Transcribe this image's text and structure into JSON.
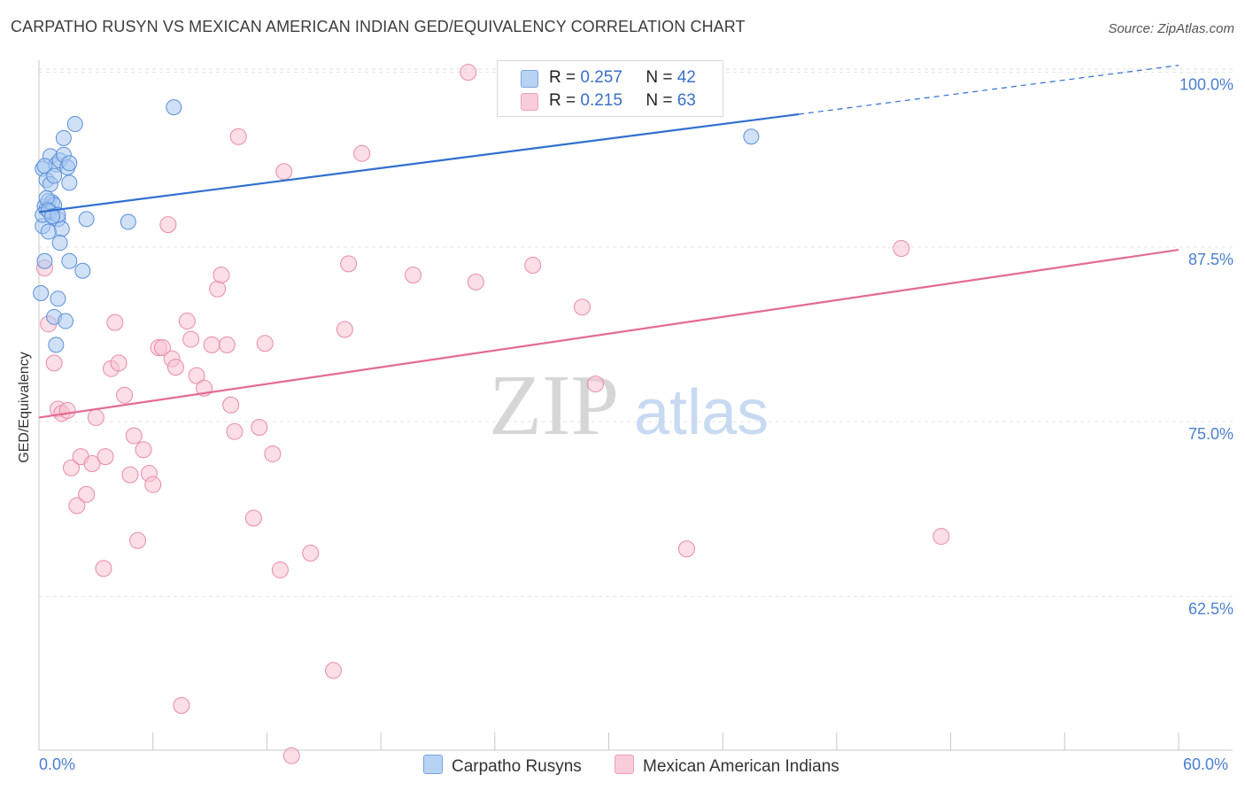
{
  "title": "CARPATHO RUSYN VS MEXICAN AMERICAN INDIAN GED/EQUIVALENCY CORRELATION CHART",
  "source": "Source: ZipAtlas.com",
  "watermark": {
    "zip": "ZIP",
    "atlas": "atlas"
  },
  "colors": {
    "blue_fill": "#a9c8f0",
    "blue_stroke": "#5a8fd8",
    "blue_line": "#2f6fd0",
    "pink_fill": "#f7c3d2",
    "pink_stroke": "#e88aa8",
    "pink_line": "#e46a93",
    "tick_text": "#4a7fd0",
    "grid": "#e3e3e3"
  },
  "legend": {
    "rows": [
      {
        "r_label": "R = ",
        "r_value": "0.257",
        "n_label": "N = ",
        "n_value": "42"
      },
      {
        "r_label": "R = ",
        "r_value": "0.215",
        "n_label": "N = ",
        "n_value": "63"
      }
    ]
  },
  "chart_data": {
    "type": "scatter",
    "title": "CARPATHO RUSYN VS MEXICAN AMERICAN INDIAN GED/EQUIVALENCY CORRELATION CHART",
    "xlabel": "",
    "ylabel": "GED/Equivalency",
    "xlim": [
      0,
      60
    ],
    "ylim": [
      51.5,
      101.5
    ],
    "x_tick_labels": [
      "0.0%",
      "60.0%"
    ],
    "y_ticks": [
      100,
      87.5,
      75,
      62.5
    ],
    "y_tick_labels": [
      "100.0%",
      "87.5%",
      "75.0%",
      "62.5%"
    ],
    "grid": true,
    "legend_position": "top-center",
    "series": [
      {
        "name": "Carpatho Rusyns",
        "color": "#a9c8f0",
        "trend": {
          "x0": 0,
          "y0": 90.0,
          "x1": 40,
          "y1": 97.0,
          "dash_to_x": 60,
          "dash_to_y": 100.5
        },
        "points": [
          [
            0.2,
            93.1
          ],
          [
            0.4,
            92.3
          ],
          [
            0.6,
            94.0
          ],
          [
            0.9,
            93.4
          ],
          [
            1.1,
            93.7
          ],
          [
            1.3,
            94.1
          ],
          [
            1.5,
            93.2
          ],
          [
            1.6,
            93.5
          ],
          [
            0.3,
            90.4
          ],
          [
            0.5,
            90.8
          ],
          [
            0.7,
            90.7
          ],
          [
            0.8,
            90.5
          ],
          [
            0.4,
            90.2
          ],
          [
            0.6,
            90.0
          ],
          [
            1.0,
            89.5
          ],
          [
            1.2,
            88.8
          ],
          [
            0.2,
            89.0
          ],
          [
            0.5,
            88.6
          ],
          [
            1.1,
            87.8
          ],
          [
            2.5,
            89.5
          ],
          [
            4.7,
            89.3
          ],
          [
            0.3,
            86.5
          ],
          [
            1.6,
            86.5
          ],
          [
            2.3,
            85.8
          ],
          [
            0.1,
            84.2
          ],
          [
            1.0,
            83.8
          ],
          [
            0.8,
            82.5
          ],
          [
            1.4,
            82.2
          ],
          [
            0.9,
            80.5
          ],
          [
            1.9,
            96.3
          ],
          [
            1.3,
            95.3
          ],
          [
            7.1,
            97.5
          ],
          [
            37.5,
            95.4
          ],
          [
            0.3,
            93.3
          ],
          [
            0.4,
            91.0
          ],
          [
            0.2,
            89.8
          ],
          [
            0.5,
            90.1
          ],
          [
            1.0,
            89.8
          ],
          [
            0.6,
            92.0
          ],
          [
            1.6,
            92.1
          ],
          [
            0.8,
            92.6
          ],
          [
            0.7,
            89.7
          ]
        ]
      },
      {
        "name": "Mexican American Indians",
        "color": "#f7c3d2",
        "trend": {
          "x0": 0,
          "y0": 75.3,
          "x1": 60,
          "y1": 87.3
        },
        "points": [
          [
            0.3,
            86.0
          ],
          [
            0.5,
            82.0
          ],
          [
            0.8,
            79.2
          ],
          [
            1.0,
            75.9
          ],
          [
            1.2,
            75.6
          ],
          [
            1.5,
            75.8
          ],
          [
            1.7,
            71.7
          ],
          [
            2.0,
            69.0
          ],
          [
            2.2,
            72.5
          ],
          [
            2.5,
            69.8
          ],
          [
            2.8,
            72.0
          ],
          [
            3.0,
            75.3
          ],
          [
            3.4,
            64.5
          ],
          [
            3.5,
            72.5
          ],
          [
            3.8,
            78.8
          ],
          [
            4.0,
            82.1
          ],
          [
            4.2,
            79.2
          ],
          [
            4.5,
            76.9
          ],
          [
            4.8,
            71.2
          ],
          [
            5.0,
            74.0
          ],
          [
            5.2,
            66.5
          ],
          [
            5.5,
            73.0
          ],
          [
            5.8,
            71.3
          ],
          [
            6.0,
            70.5
          ],
          [
            6.3,
            80.3
          ],
          [
            6.5,
            80.3
          ],
          [
            6.8,
            89.1
          ],
          [
            7.0,
            79.5
          ],
          [
            7.2,
            78.9
          ],
          [
            7.5,
            54.7
          ],
          [
            7.8,
            82.2
          ],
          [
            8.0,
            80.9
          ],
          [
            8.3,
            78.3
          ],
          [
            8.7,
            77.4
          ],
          [
            9.1,
            80.5
          ],
          [
            9.4,
            84.5
          ],
          [
            9.6,
            85.5
          ],
          [
            9.9,
            80.5
          ],
          [
            10.1,
            76.2
          ],
          [
            10.3,
            74.3
          ],
          [
            10.5,
            95.4
          ],
          [
            11.3,
            68.1
          ],
          [
            11.6,
            74.6
          ],
          [
            11.9,
            80.6
          ],
          [
            12.3,
            72.7
          ],
          [
            12.7,
            64.4
          ],
          [
            12.9,
            92.9
          ],
          [
            13.3,
            51.1
          ],
          [
            14.3,
            65.6
          ],
          [
            15.5,
            57.2
          ],
          [
            16.1,
            81.6
          ],
          [
            16.3,
            86.3
          ],
          [
            17.0,
            94.2
          ],
          [
            19.7,
            85.5
          ],
          [
            22.6,
            100.0
          ],
          [
            26.0,
            86.2
          ],
          [
            28.6,
            83.2
          ],
          [
            29.3,
            77.7
          ],
          [
            33.6,
            100.0
          ],
          [
            34.1,
            65.9
          ],
          [
            45.4,
            87.4
          ],
          [
            47.5,
            66.8
          ],
          [
            23.0,
            85.0
          ]
        ]
      }
    ]
  },
  "bottom_legend": {
    "items": [
      "Carpatho Rusyns",
      "Mexican American Indians"
    ]
  }
}
